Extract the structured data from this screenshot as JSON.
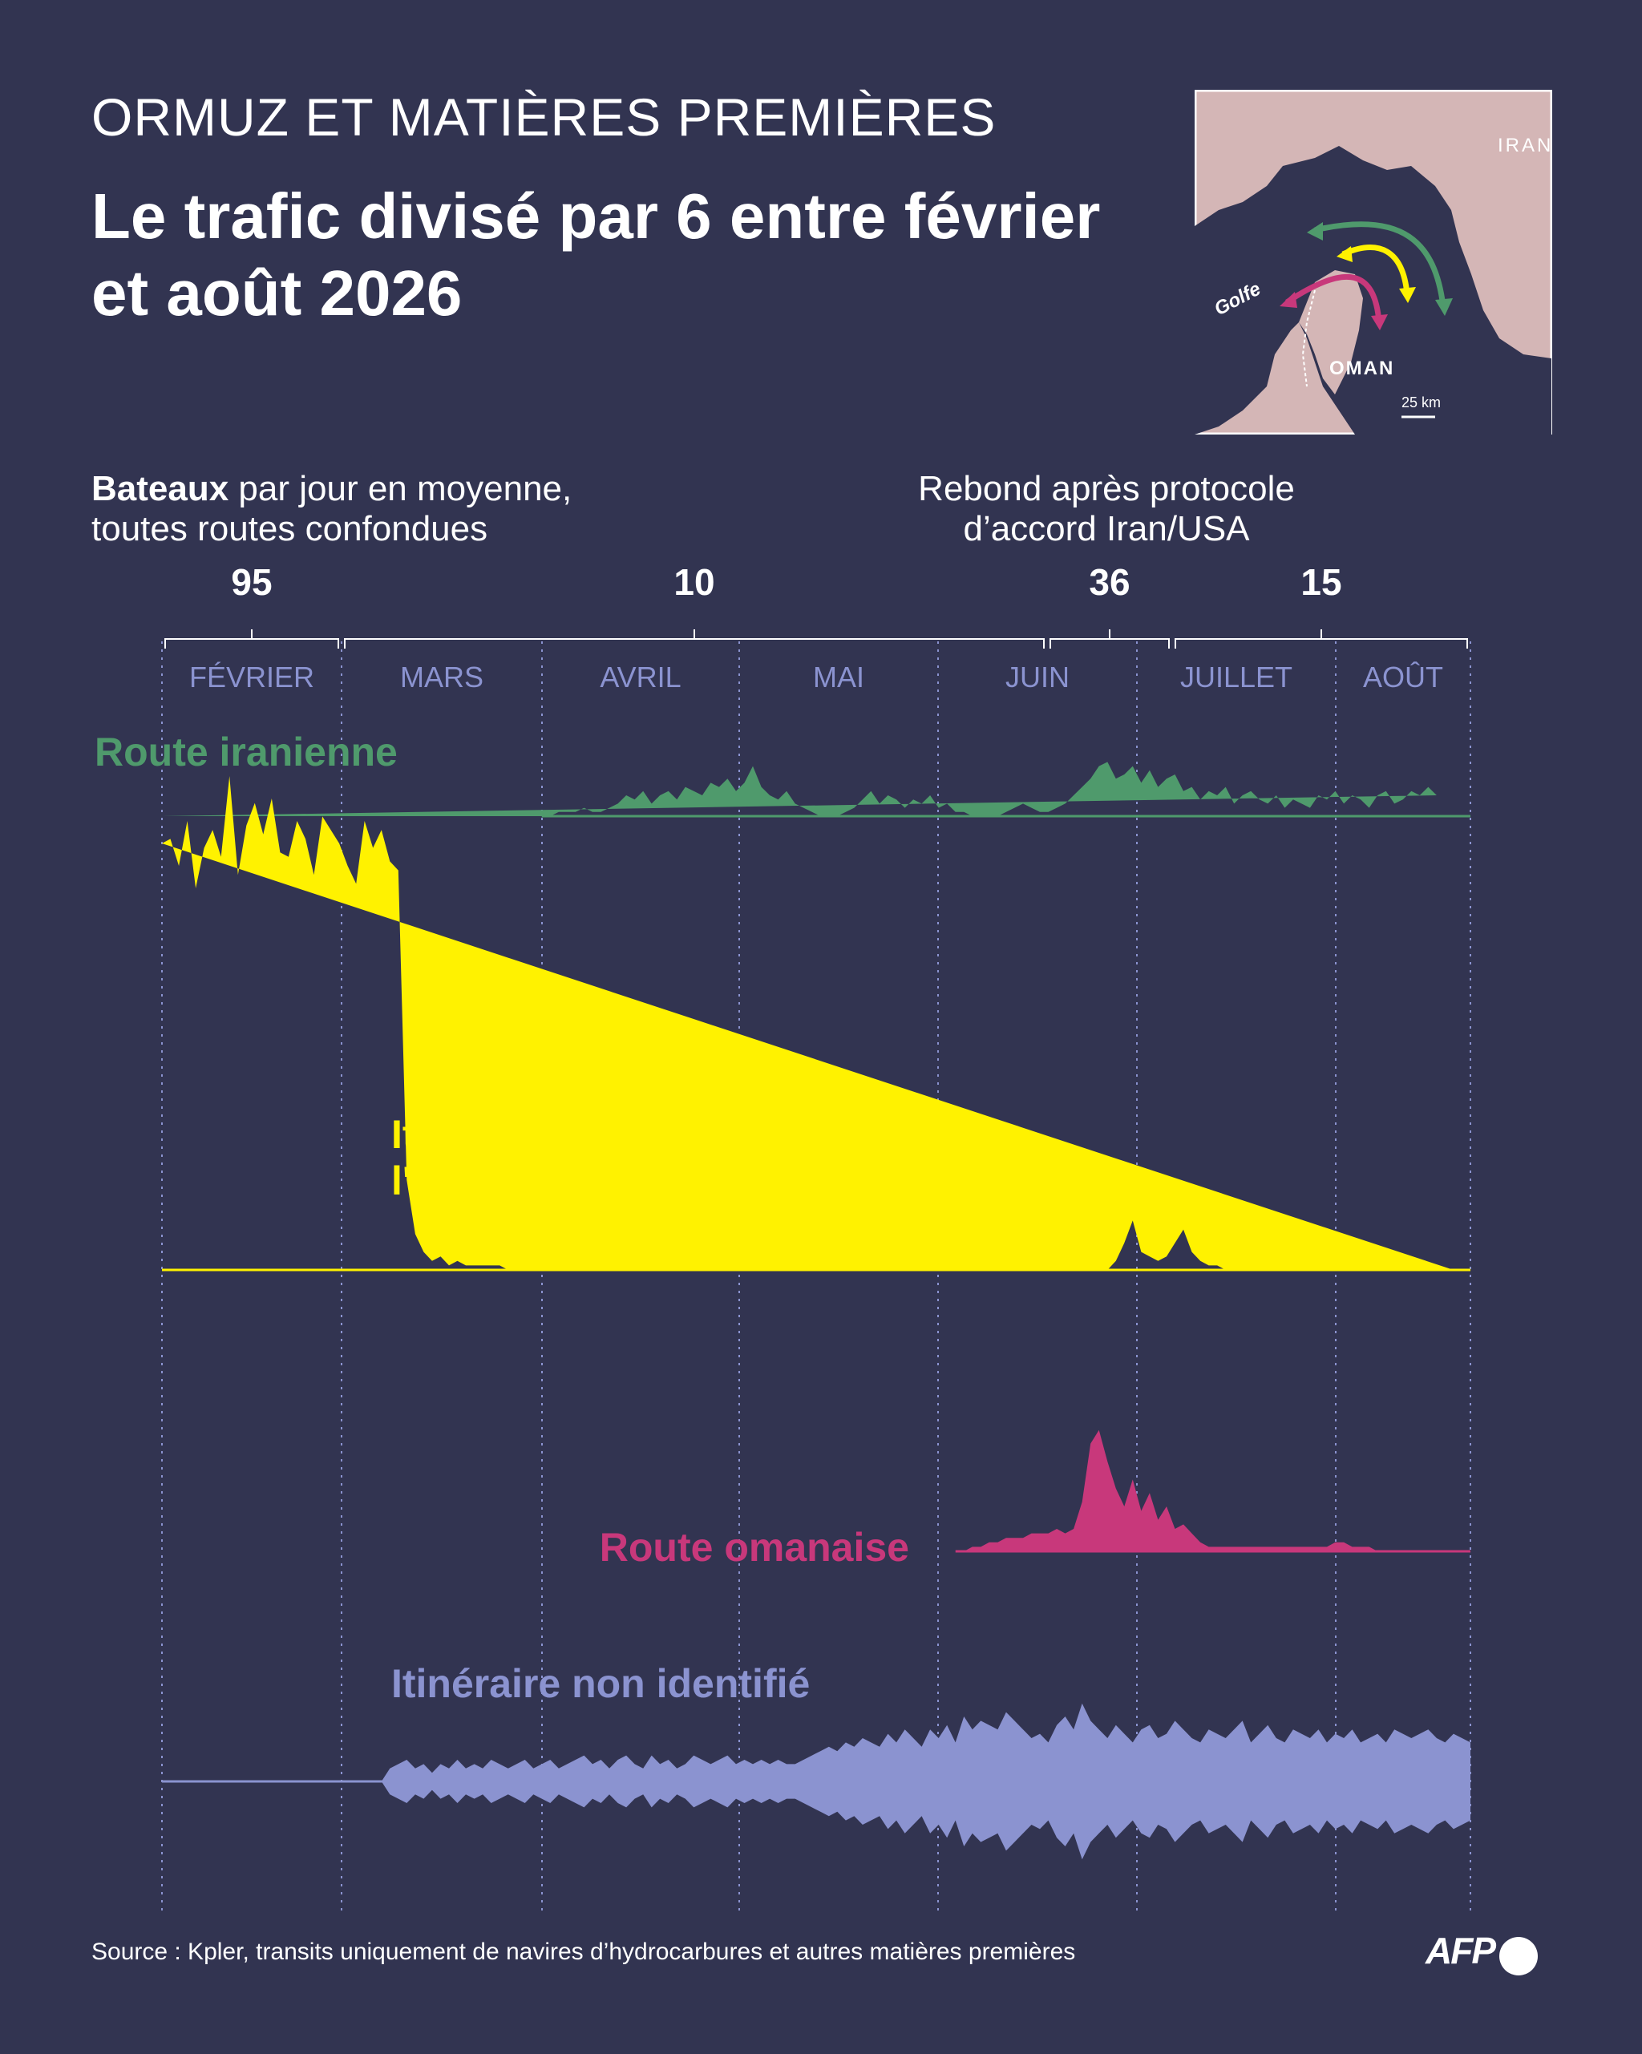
{
  "header": {
    "kicker": "ORMUZ ET MATIÈRES PREMIÈRES",
    "title": "Le trafic divisé par 6 entre février et août 2026"
  },
  "map": {
    "labels": {
      "iran": "IRAN",
      "oman": "OMAN",
      "golfe": "Golfe",
      "scale": "25 km"
    },
    "icons": [
      "arrow-green",
      "arrow-yellow",
      "arrow-pink"
    ]
  },
  "axis_label": {
    "bold": "Bateaux",
    "rest_line1": "par jour en moyenne,",
    "rest_line2": "toutes routes confondues"
  },
  "annotation": {
    "line1": "Rebond après protocole",
    "line2": "d’accord Iran/USA"
  },
  "source": "Source : Kpler, transits uniquement de navires d’hydrocarbures et autres matières premières",
  "logo": "AFP",
  "colors": {
    "background": "#323451",
    "iran": "#4f9a6c",
    "imo": "#fff200",
    "oman": "#c8387b",
    "unknown": "#8b93d0",
    "month_text": "#8b93d0"
  },
  "chart_data": {
    "type": "area",
    "style": "mirrored waveform (streamgraph-like)",
    "months": [
      "FÉVRIER",
      "MARS",
      "AVRIL",
      "MAI",
      "JUIN",
      "JUILLET",
      "AOÛT"
    ],
    "period_averages": [
      {
        "label": "95",
        "from": "FÉVRIER",
        "to": "FÉVRIER",
        "value": 95
      },
      {
        "label": "10",
        "from": "MARS",
        "to": "JUIN",
        "value": 10
      },
      {
        "label": "36",
        "from": "JUIN",
        "to": "JUIN",
        "value": 36
      },
      {
        "label": "15",
        "from": "JUILLET",
        "to": "AOÛT",
        "value": 15
      }
    ],
    "series": [
      {
        "name": "Route iranienne",
        "color": "#4f9a6c",
        "values": [
          0,
          0,
          0,
          0,
          0,
          0,
          0,
          0,
          0,
          0,
          0,
          0,
          0,
          0,
          0,
          0,
          0,
          0,
          0,
          0,
          0,
          0,
          0,
          0,
          0,
          0,
          0,
          0,
          0,
          0,
          0,
          0,
          0,
          0,
          0,
          0,
          0,
          0,
          0,
          0,
          0,
          0,
          0,
          0,
          0,
          0,
          0,
          1,
          1,
          1,
          2,
          1,
          1,
          2,
          3,
          5,
          4,
          6,
          3,
          5,
          6,
          4,
          7,
          6,
          5,
          8,
          7,
          9,
          6,
          8,
          12,
          7,
          5,
          4,
          6,
          3,
          2,
          1,
          0,
          0,
          0,
          1,
          2,
          4,
          6,
          3,
          5,
          4,
          2,
          4,
          3,
          5,
          2,
          3,
          1,
          1,
          0,
          0,
          0,
          0,
          1,
          2,
          3,
          2,
          1,
          1,
          2,
          3,
          5,
          7,
          9,
          12,
          13,
          9,
          10,
          12,
          8,
          11,
          7,
          9,
          10,
          6,
          7,
          4,
          6,
          5,
          7,
          3,
          5,
          6,
          4,
          3,
          5,
          2,
          4,
          3,
          2,
          5,
          4,
          6,
          3,
          5,
          4,
          2,
          5,
          6,
          3,
          4,
          6,
          5,
          7,
          5
        ]
      },
      {
        "name": "Itinéraire approuvé par l'Organisation maritime internationale",
        "color": "#fff200",
        "values": [
          95,
          96,
          90,
          100,
          85,
          94,
          98,
          92,
          110,
          88,
          99,
          104,
          97,
          105,
          93,
          92,
          100,
          96,
          88,
          101,
          98,
          95,
          90,
          86,
          100,
          94,
          98,
          91,
          89,
          20,
          8,
          4,
          2,
          3,
          1,
          2,
          1,
          1,
          1,
          1,
          1,
          0,
          0,
          0,
          0,
          0,
          0,
          0,
          0,
          0,
          0,
          0,
          0,
          0,
          0,
          0,
          0,
          0,
          0,
          0,
          0,
          0,
          0,
          0,
          0,
          0,
          0,
          0,
          0,
          0,
          0,
          0,
          0,
          0,
          0,
          0,
          0,
          0,
          0,
          0,
          0,
          0,
          0,
          0,
          0,
          0,
          0,
          0,
          0,
          0,
          0,
          0,
          0,
          0,
          0,
          0,
          0,
          0,
          0,
          0,
          0,
          0,
          0,
          0,
          0,
          0,
          0,
          0,
          0,
          0,
          0,
          0,
          0,
          2,
          6,
          11,
          4,
          3,
          2,
          3,
          6,
          9,
          4,
          2,
          1,
          1,
          0,
          0,
          0,
          0,
          0,
          0,
          0,
          0,
          0,
          0,
          0,
          0,
          0,
          0,
          0,
          0,
          0,
          0,
          0,
          0,
          0,
          0,
          0,
          0,
          0,
          0,
          0,
          0
        ]
      },
      {
        "name": "Route omanaise",
        "color": "#c8387b",
        "values": [
          0,
          0,
          0,
          0,
          0,
          0,
          0,
          0,
          0,
          0,
          0,
          0,
          0,
          0,
          0,
          0,
          0,
          0,
          0,
          0,
          0,
          0,
          0,
          0,
          0,
          0,
          0,
          0,
          0,
          0,
          0,
          0,
          0,
          0,
          0,
          0,
          0,
          0,
          0,
          0,
          0,
          0,
          0,
          0,
          0,
          0,
          0,
          0,
          0,
          0,
          0,
          0,
          0,
          0,
          0,
          0,
          0,
          0,
          0,
          0,
          0,
          0,
          0,
          0,
          0,
          0,
          0,
          0,
          0,
          0,
          0,
          0,
          0,
          0,
          0,
          0,
          0,
          0,
          0,
          0,
          0,
          0,
          0,
          0,
          0,
          0,
          0,
          0,
          0,
          0,
          0,
          0,
          0,
          0,
          0,
          0,
          1,
          1,
          2,
          2,
          3,
          3,
          3,
          4,
          4,
          4,
          5,
          4,
          5,
          11,
          24,
          27,
          20,
          14,
          10,
          16,
          9,
          13,
          7,
          10,
          5,
          6,
          4,
          2,
          1,
          1,
          1,
          1,
          1,
          1,
          1,
          1,
          1,
          1,
          1,
          1,
          1,
          1,
          1,
          2,
          2,
          1,
          1,
          1,
          0,
          0,
          0,
          0,
          0,
          0,
          0,
          0,
          0,
          0
        ]
      },
      {
        "name": "Itinéraire non identifié",
        "color": "#8b93d0",
        "values": [
          0,
          0,
          0,
          0,
          0,
          0,
          0,
          0,
          0,
          0,
          0,
          0,
          0,
          0,
          0,
          0,
          0,
          0,
          0,
          0,
          0,
          0,
          0,
          0,
          0,
          0,
          0,
          3,
          4,
          5,
          3,
          4,
          2,
          4,
          3,
          5,
          3,
          4,
          3,
          5,
          4,
          3,
          4,
          5,
          3,
          4,
          5,
          3,
          4,
          5,
          6,
          4,
          5,
          3,
          5,
          6,
          4,
          3,
          6,
          4,
          5,
          3,
          4,
          6,
          5,
          4,
          5,
          6,
          4,
          5,
          4,
          5,
          4,
          5,
          4,
          4,
          5,
          6,
          7,
          8,
          7,
          9,
          8,
          10,
          9,
          8,
          11,
          9,
          12,
          10,
          8,
          12,
          10,
          13,
          9,
          15,
          12,
          14,
          13,
          12,
          16,
          14,
          12,
          10,
          11,
          9,
          13,
          15,
          12,
          18,
          14,
          12,
          10,
          13,
          11,
          9,
          12,
          13,
          10,
          11,
          14,
          12,
          10,
          9,
          12,
          11,
          10,
          12,
          14,
          9,
          11,
          13,
          10,
          9,
          12,
          11,
          10,
          12,
          9,
          11,
          10,
          12,
          9,
          10,
          11,
          9,
          12,
          11,
          10,
          11,
          12,
          10,
          9,
          11,
          10,
          9
        ]
      }
    ],
    "bins": 156
  }
}
